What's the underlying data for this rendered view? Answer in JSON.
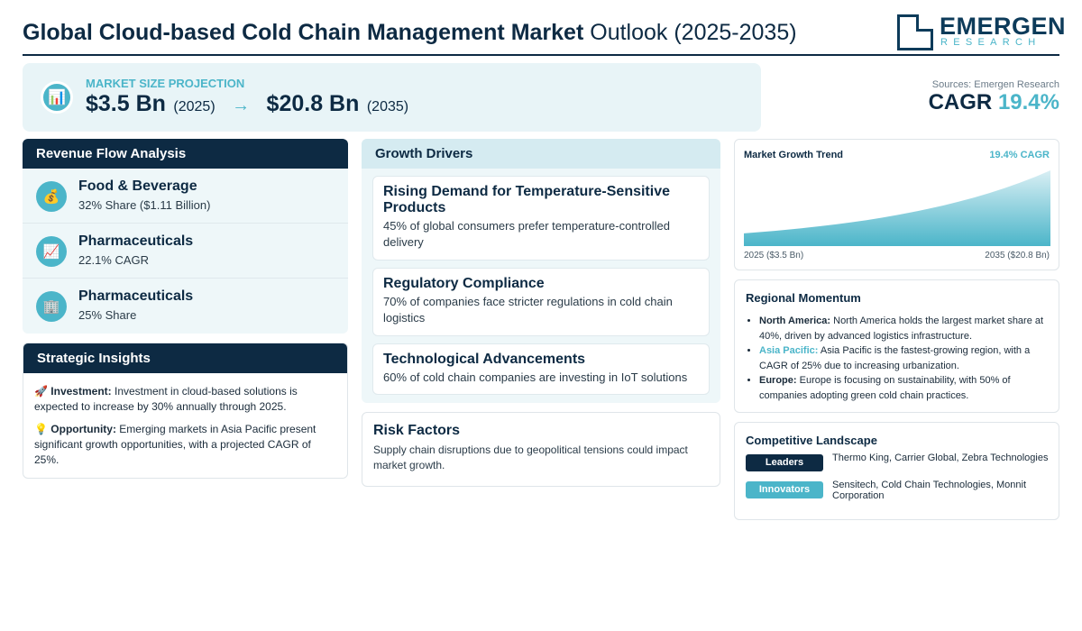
{
  "header": {
    "title_bold": "Global Cloud-based Cold Chain Management Market",
    "title_light": "Outlook (2025-2035)",
    "logo_name": "EMERGEN",
    "logo_sub": "RESEARCH"
  },
  "projection": {
    "label": "MARKET SIZE PROJECTION",
    "start_value": "$3.5 Bn",
    "start_year": "(2025)",
    "arrow": "→",
    "end_value": "$20.8 Bn",
    "end_year": "(2035)",
    "icon": "bar-chart-icon"
  },
  "sources": "Sources: Emergen Research",
  "cagr": {
    "label": "CAGR",
    "value": "19.4%"
  },
  "revenue": {
    "heading": "Revenue Flow Analysis",
    "items": [
      {
        "icon": "money-bag-icon",
        "glyph": "💰",
        "name": "Food & Beverage",
        "sub": "32% Share ($1.11 Billion)"
      },
      {
        "icon": "trend-chart-icon",
        "glyph": "📈",
        "name": "Pharmaceuticals",
        "sub": "22.1% CAGR"
      },
      {
        "icon": "building-icon",
        "glyph": "🏢",
        "name": "Pharmaceuticals",
        "sub": "25% Share"
      }
    ]
  },
  "strategic": {
    "heading": "Strategic Insights",
    "items": [
      {
        "glyph": "🚀",
        "label": "Investment:",
        "text": "Investment in cloud-based solutions is expected to increase by 30% annually through 2025."
      },
      {
        "glyph": "💡",
        "label": "Opportunity:",
        "text": "Emerging markets in Asia Pacific present significant growth opportunities, with a projected CAGR of 25%."
      }
    ]
  },
  "drivers": {
    "heading": "Growth Drivers",
    "items": [
      {
        "title": "Rising Demand for Temperature-Sensitive Products",
        "text": "45% of global consumers prefer temperature-controlled delivery"
      },
      {
        "title": "Regulatory Compliance",
        "text": "70% of companies face stricter regulations in cold chain logistics"
      },
      {
        "title": "Technological Advancements",
        "text": "60% of cold chain companies are investing in IoT solutions"
      }
    ]
  },
  "risk": {
    "heading": "Risk Factors",
    "text": "Supply chain disruptions due to geopolitical tensions could impact market growth."
  },
  "trend": {
    "title": "Market Growth Trend",
    "cagr_label": "19.4% CAGR",
    "start_label": "2025 ($3.5 Bn)",
    "end_label": "2035 ($20.8 Bn)"
  },
  "chart_data": {
    "type": "area",
    "x": [
      2025,
      2035
    ],
    "values": [
      3.5,
      20.8
    ],
    "title": "Market Growth Trend",
    "xlabel": "",
    "ylabel": "",
    "grid": false,
    "colors": {
      "fill_top": "#d9eff4",
      "fill_bottom": "#4bb5c9"
    }
  },
  "regional": {
    "heading": "Regional Momentum",
    "items": [
      {
        "region": "North America:",
        "highlight": false,
        "text": "North America holds the largest market share at 40%, driven by advanced logistics infrastructure."
      },
      {
        "region": "Asia Pacific:",
        "highlight": true,
        "text": "Asia Pacific is the fastest-growing region, with a CAGR of 25% due to increasing urbanization."
      },
      {
        "region": "Europe:",
        "highlight": false,
        "text": "Europe is focusing on sustainability, with 50% of companies adopting green cold chain practices."
      }
    ]
  },
  "competitive": {
    "heading": "Competitive Landscape",
    "rows": [
      {
        "badge": "Leaders",
        "text": "Thermo King, Carrier Global, Zebra Technologies"
      },
      {
        "badge": "Innovators",
        "text": "Sensitech, Cold Chain Technologies, Monnit Corporation"
      }
    ]
  },
  "colors": {
    "navy": "#0d2a43",
    "teal": "#4bb5c9",
    "panel": "#eef7f9"
  }
}
